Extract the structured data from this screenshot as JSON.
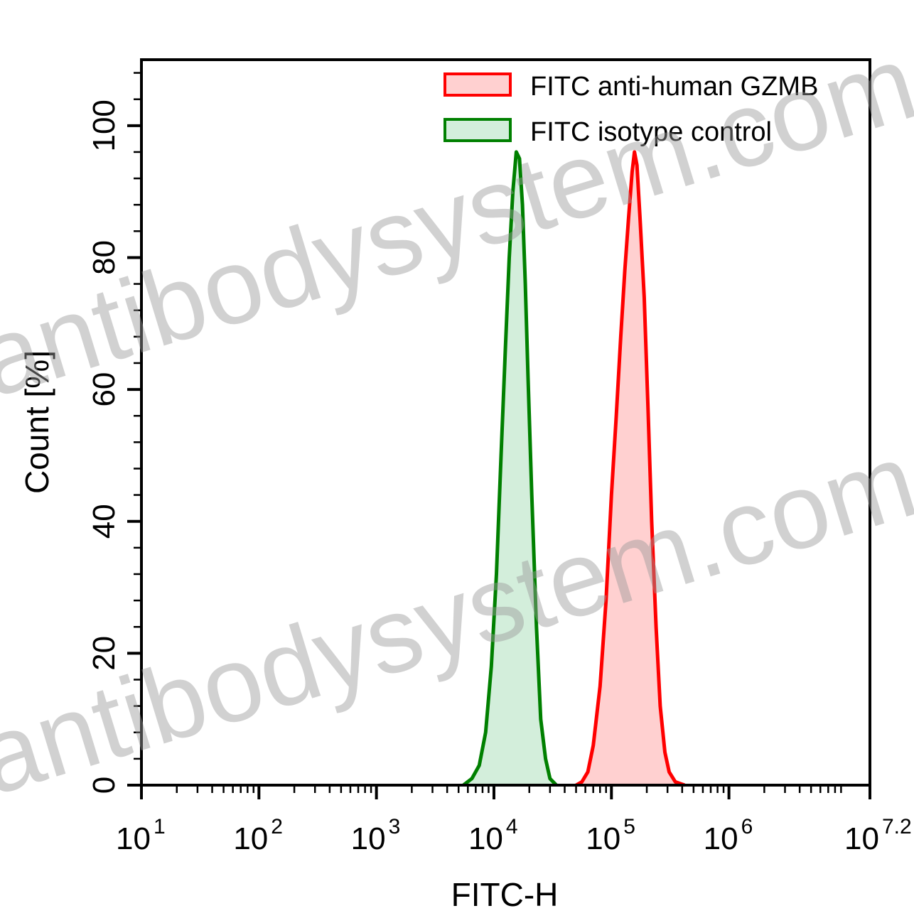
{
  "chart_data": {
    "type": "area",
    "xlabel": "FITC-H",
    "ylabel": "Count [%]",
    "x_scale": "log10",
    "xlim": [
      10,
      15848932
    ],
    "ylim": [
      0,
      110
    ],
    "x_ticks": [
      {
        "value": 10,
        "base": "10",
        "exp": "1"
      },
      {
        "value": 100,
        "base": "10",
        "exp": "2"
      },
      {
        "value": 1000,
        "base": "10",
        "exp": "3"
      },
      {
        "value": 10000,
        "base": "10",
        "exp": "4"
      },
      {
        "value": 100000,
        "base": "10",
        "exp": "5"
      },
      {
        "value": 1000000,
        "base": "10",
        "exp": "6"
      },
      {
        "value": 15848932,
        "base": "10",
        "exp": "7.2"
      }
    ],
    "y_ticks": [
      "0",
      "20",
      "40",
      "60",
      "80",
      "100"
    ],
    "legend_position": "top-right",
    "series": [
      {
        "name": "FITC anti-human GZMB",
        "color": "#ff0000",
        "fill": "#ffd0d0",
        "x": [
          50000,
          56000,
          63000,
          70000,
          80000,
          90000,
          100000,
          110000,
          120000,
          130000,
          140000,
          150000,
          157000,
          165000,
          175000,
          190000,
          205000,
          220000,
          240000,
          260000,
          285000,
          310000,
          350000,
          420000
        ],
        "y": [
          0,
          0.5,
          2,
          6,
          15,
          28,
          44,
          56,
          68,
          78,
          86,
          93,
          96,
          94,
          86,
          74,
          57,
          40,
          24,
          12,
          5,
          2,
          0.5,
          0
        ]
      },
      {
        "name": "FITC  isotype control",
        "color": "#008000",
        "fill": "#d3eedb",
        "x": [
          5500,
          6500,
          7500,
          8500,
          9500,
          10500,
          11500,
          12500,
          13500,
          14500,
          15500,
          16500,
          17500,
          18500,
          19500,
          21000,
          23000,
          25000,
          27500,
          30000,
          34000
        ],
        "y": [
          0,
          1,
          3,
          8,
          18,
          32,
          50,
          66,
          80,
          90,
          96,
          95,
          88,
          76,
          62,
          44,
          24,
          10,
          4,
          1,
          0
        ]
      }
    ]
  },
  "watermark": "antibodysystem.com"
}
